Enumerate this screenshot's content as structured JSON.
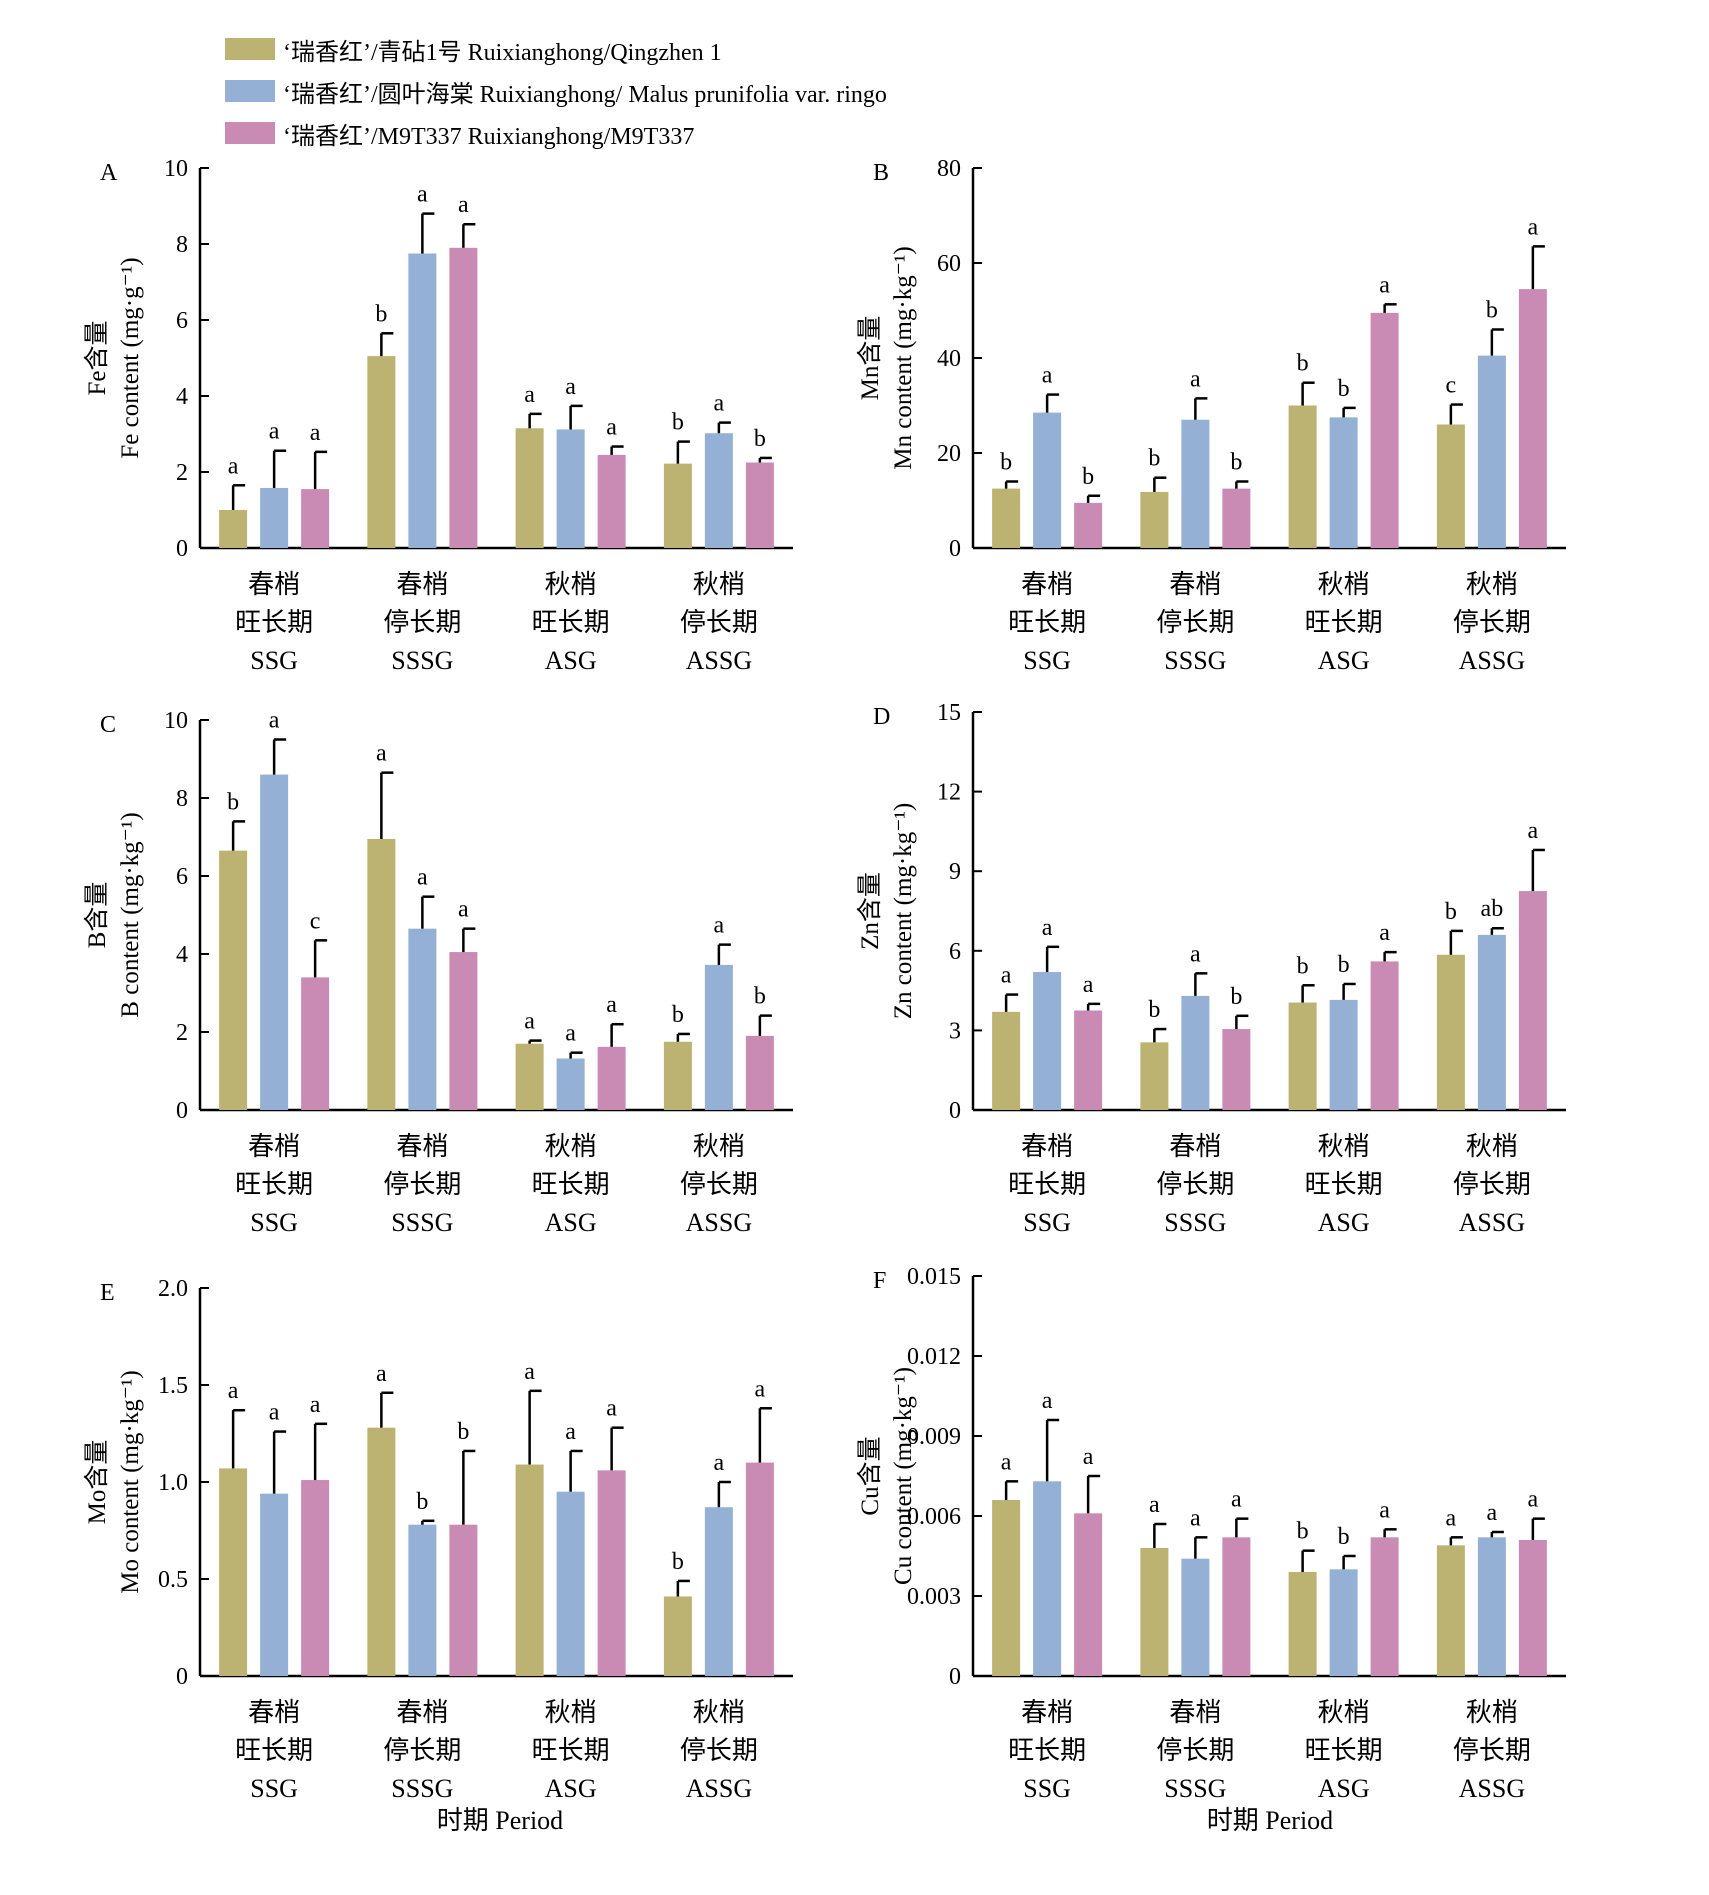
{
  "legend": [
    {
      "label": "‘瑞香红’/青砧1号 Ruixianghong/Qingzhen 1",
      "color": "#bcb271"
    },
    {
      "label": "‘瑞香红’/圆叶海棠 Ruixianghong/ Malus prunifolia var. ringo",
      "color": "#94b0d4"
    },
    {
      "label": "‘瑞香红’/M9T337 Ruixianghong/M9T337",
      "color": "#c98ab4"
    }
  ],
  "x_axis_title": "时期 Period",
  "chart_data": [
    {
      "type": "bar",
      "panel": "A",
      "ylabel_cn": "Fe含量",
      "ylabel_en": "Fe content (mg·g⁻¹)",
      "ylim": [
        0,
        10
      ],
      "yticks": [
        "0",
        "2",
        "4",
        "6",
        "8",
        "10"
      ],
      "categories": [
        [
          "春梢",
          "旺长期",
          "SSG"
        ],
        [
          "春梢",
          "停长期",
          "SSSG"
        ],
        [
          "秋梢",
          "旺长期",
          "ASG"
        ],
        [
          "秋梢",
          "停长期",
          "ASSG"
        ]
      ],
      "series": [
        {
          "values": [
            1.0,
            5.05,
            3.15,
            2.22
          ],
          "errors": [
            0.65,
            0.6,
            0.38,
            0.58
          ],
          "letters": [
            "a",
            "b",
            "a",
            "b"
          ]
        },
        {
          "values": [
            1.58,
            7.75,
            3.12,
            3.02
          ],
          "errors": [
            0.98,
            1.05,
            0.62,
            0.28
          ],
          "letters": [
            "a",
            "a",
            "a",
            "a"
          ]
        },
        {
          "values": [
            1.55,
            7.9,
            2.45,
            2.25
          ],
          "errors": [
            0.98,
            0.62,
            0.22,
            0.12
          ],
          "letters": [
            "a",
            "a",
            "a",
            "b"
          ]
        }
      ]
    },
    {
      "type": "bar",
      "panel": "B",
      "ylabel_cn": "Mn含量",
      "ylabel_en": "Mn content (mg·kg⁻¹)",
      "ylim": [
        0,
        80
      ],
      "yticks": [
        "0",
        "20",
        "40",
        "60",
        "80"
      ],
      "categories": [
        [
          "春梢",
          "旺长期",
          "SSG"
        ],
        [
          "春梢",
          "停长期",
          "SSSG"
        ],
        [
          "秋梢",
          "旺长期",
          "ASG"
        ],
        [
          "秋梢",
          "停长期",
          "ASSG"
        ]
      ],
      "series": [
        {
          "values": [
            12.5,
            11.8,
            30.0,
            26.0
          ],
          "errors": [
            1.5,
            3.0,
            4.8,
            4.2
          ],
          "letters": [
            "b",
            "b",
            "b",
            "c"
          ]
        },
        {
          "values": [
            28.5,
            27.0,
            27.5,
            40.5
          ],
          "errors": [
            3.8,
            4.5,
            2.0,
            5.5
          ],
          "letters": [
            "a",
            "a",
            "b",
            "b"
          ]
        },
        {
          "values": [
            9.5,
            12.5,
            49.5,
            54.5
          ],
          "errors": [
            1.5,
            1.5,
            1.8,
            9.0
          ],
          "letters": [
            "b",
            "b",
            "a",
            "a"
          ]
        }
      ]
    },
    {
      "type": "bar",
      "panel": "C",
      "ylabel_cn": "B含量",
      "ylabel_en": "B content (mg·kg⁻¹)",
      "ylim": [
        0,
        10
      ],
      "yticks": [
        "0",
        "2",
        "4",
        "6",
        "8",
        "10"
      ],
      "categories": [
        [
          "春梢",
          "旺长期",
          "SSG"
        ],
        [
          "春梢",
          "停长期",
          "SSSG"
        ],
        [
          "秋梢",
          "旺长期",
          "ASG"
        ],
        [
          "秋梢",
          "停长期",
          "ASSG"
        ]
      ],
      "series": [
        {
          "values": [
            6.65,
            6.95,
            1.7,
            1.75
          ],
          "errors": [
            0.75,
            1.7,
            0.08,
            0.2
          ],
          "letters": [
            "b",
            "a",
            "a",
            "b"
          ]
        },
        {
          "values": [
            8.6,
            4.65,
            1.32,
            3.72
          ],
          "errors": [
            0.9,
            0.82,
            0.15,
            0.52
          ],
          "letters": [
            "a",
            "a",
            "a",
            "a"
          ]
        },
        {
          "values": [
            3.4,
            4.05,
            1.62,
            1.9
          ],
          "errors": [
            0.95,
            0.6,
            0.58,
            0.52
          ],
          "letters": [
            "c",
            "a",
            "a",
            "b"
          ]
        }
      ]
    },
    {
      "type": "bar",
      "panel": "D",
      "ylabel_cn": "Zn含量",
      "ylabel_en": "Zn content (mg·kg⁻¹)",
      "ylim": [
        0,
        15
      ],
      "yticks": [
        "0",
        "3",
        "6",
        "9",
        "12",
        "15"
      ],
      "categories": [
        [
          "春梢",
          "旺长期",
          "SSG"
        ],
        [
          "春梢",
          "停长期",
          "SSSG"
        ],
        [
          "秋梢",
          "旺长期",
          "ASG"
        ],
        [
          "秋梢",
          "停长期",
          "ASSG"
        ]
      ],
      "series": [
        {
          "values": [
            3.7,
            2.55,
            4.05,
            5.85
          ],
          "errors": [
            0.65,
            0.5,
            0.65,
            0.9
          ],
          "letters": [
            "a",
            "b",
            "b",
            "b"
          ]
        },
        {
          "values": [
            5.2,
            4.3,
            4.15,
            6.6
          ],
          "errors": [
            0.95,
            0.85,
            0.6,
            0.25
          ],
          "letters": [
            "a",
            "a",
            "b",
            "ab"
          ]
        },
        {
          "values": [
            3.75,
            3.05,
            5.6,
            8.25
          ],
          "errors": [
            0.25,
            0.5,
            0.35,
            1.55
          ],
          "letters": [
            "a",
            "b",
            "a",
            "a"
          ]
        }
      ]
    },
    {
      "type": "bar",
      "panel": "E",
      "ylabel_cn": "Mo含量",
      "ylabel_en": "Mo content (mg·kg⁻¹)",
      "ylim": [
        0,
        2.0
      ],
      "yticks": [
        "0",
        "0.5",
        "1.0",
        "1.5",
        "2.0"
      ],
      "categories": [
        [
          "春梢",
          "旺长期",
          "SSG"
        ],
        [
          "春梢",
          "停长期",
          "SSSG"
        ],
        [
          "秋梢",
          "旺长期",
          "ASG"
        ],
        [
          "秋梢",
          "停长期",
          "ASSG"
        ]
      ],
      "series": [
        {
          "values": [
            1.07,
            1.28,
            1.09,
            0.41
          ],
          "errors": [
            0.3,
            0.18,
            0.38,
            0.08
          ],
          "letters": [
            "a",
            "a",
            "a",
            "b"
          ]
        },
        {
          "values": [
            0.94,
            0.78,
            0.95,
            0.87
          ],
          "errors": [
            0.32,
            0.02,
            0.21,
            0.13
          ],
          "letters": [
            "a",
            "b",
            "a",
            "a"
          ]
        },
        {
          "values": [
            1.01,
            0.78,
            1.06,
            1.1
          ],
          "errors": [
            0.29,
            0.38,
            0.22,
            0.28
          ],
          "letters": [
            "a",
            "b",
            "a",
            "a"
          ]
        }
      ]
    },
    {
      "type": "bar",
      "panel": "F",
      "ylabel_cn": "Cu含量",
      "ylabel_en": "Cu content (mg·kg⁻¹)",
      "ylim": [
        0,
        0.015
      ],
      "yticks": [
        "0",
        "0.003",
        "0.006",
        "0.009",
        "0.012",
        "0.015"
      ],
      "categories": [
        [
          "春梢",
          "旺长期",
          "SSG"
        ],
        [
          "春梢",
          "停长期",
          "SSSG"
        ],
        [
          "秋梢",
          "旺长期",
          "ASG"
        ],
        [
          "秋梢",
          "停长期",
          "ASSG"
        ]
      ],
      "series": [
        {
          "values": [
            0.0066,
            0.0048,
            0.0039,
            0.0049
          ],
          "errors": [
            0.0007,
            0.0009,
            0.0008,
            0.0003
          ],
          "letters": [
            "a",
            "a",
            "b",
            "a"
          ]
        },
        {
          "values": [
            0.0073,
            0.0044,
            0.004,
            0.0052
          ],
          "errors": [
            0.0023,
            0.0008,
            0.0005,
            0.0002
          ],
          "letters": [
            "a",
            "a",
            "b",
            "a"
          ]
        },
        {
          "values": [
            0.0061,
            0.0052,
            0.0052,
            0.0051
          ],
          "errors": [
            0.0014,
            0.0007,
            0.0003,
            0.0008
          ],
          "letters": [
            "a",
            "a",
            "a",
            "a"
          ]
        }
      ]
    }
  ]
}
